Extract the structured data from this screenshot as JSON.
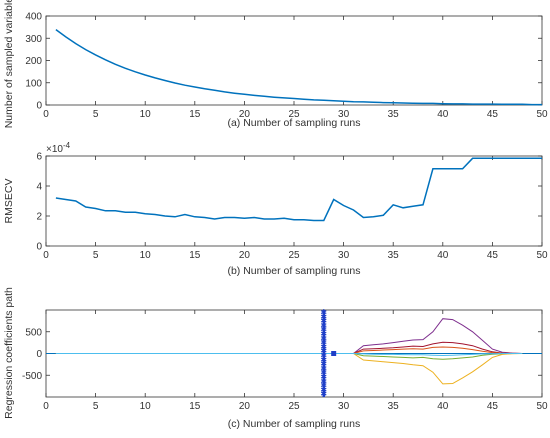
{
  "colors": {
    "curve": "#0072BD",
    "axis": "#333333",
    "marker": "#1F3FC8",
    "paths": [
      "#7E2F8E",
      "#A2142F",
      "#D95319",
      "#77AC30",
      "#EDB120",
      "#4DBEEE"
    ]
  },
  "chart_data": [
    {
      "type": "line",
      "caption": "(a) Number of sampling runs",
      "xlabel": "",
      "ylabel": "Number of sampled variables",
      "xlim": [
        0,
        50
      ],
      "ylim": [
        0,
        400
      ],
      "xticks": [
        "0",
        "5",
        "10",
        "15",
        "20",
        "25",
        "30",
        "35",
        "40",
        "45",
        "50"
      ],
      "yticks": [
        "0",
        "100",
        "200",
        "300",
        "400"
      ],
      "x": [
        1,
        2,
        3,
        4,
        5,
        6,
        7,
        8,
        9,
        10,
        11,
        12,
        13,
        14,
        15,
        16,
        17,
        18,
        19,
        20,
        21,
        22,
        23,
        24,
        25,
        26,
        27,
        28,
        29,
        30,
        31,
        32,
        33,
        34,
        35,
        36,
        37,
        38,
        39,
        40,
        41,
        42,
        43,
        44,
        45,
        46,
        47,
        48,
        49,
        50
      ],
      "y": [
        339,
        306,
        276,
        249,
        225,
        203,
        183,
        165,
        149,
        135,
        122,
        110,
        99,
        89,
        81,
        73,
        66,
        59,
        53,
        48,
        43,
        39,
        35,
        32,
        29,
        26,
        23,
        21,
        19,
        17,
        15,
        14,
        12,
        11,
        10,
        9,
        8,
        7,
        7,
        6,
        5,
        5,
        4,
        4,
        4,
        3,
        3,
        3,
        2,
        2
      ]
    },
    {
      "type": "line",
      "caption": "(b) Number of sampling runs",
      "xlabel": "",
      "ylabel": "RMSECV",
      "exponent": "×10",
      "exponent_power": "-4",
      "xlim": [
        0,
        50
      ],
      "ylim": [
        0,
        6
      ],
      "xticks": [
        "0",
        "5",
        "10",
        "15",
        "20",
        "25",
        "30",
        "35",
        "40",
        "45",
        "50"
      ],
      "yticks": [
        "0",
        "2",
        "4",
        "6"
      ],
      "x": [
        1,
        2,
        3,
        4,
        5,
        6,
        7,
        8,
        9,
        10,
        11,
        12,
        13,
        14,
        15,
        16,
        17,
        18,
        19,
        20,
        21,
        22,
        23,
        24,
        25,
        26,
        27,
        28,
        29,
        30,
        31,
        32,
        33,
        34,
        35,
        36,
        37,
        38,
        39,
        40,
        41,
        42,
        43,
        44,
        45,
        46,
        47,
        48,
        49,
        50
      ],
      "y": [
        3.2,
        3.1,
        3.0,
        2.6,
        2.5,
        2.35,
        2.35,
        2.25,
        2.25,
        2.15,
        2.1,
        2.0,
        1.95,
        2.1,
        1.95,
        1.9,
        1.8,
        1.9,
        1.9,
        1.85,
        1.9,
        1.8,
        1.8,
        1.85,
        1.75,
        1.75,
        1.7,
        1.7,
        3.1,
        2.7,
        2.4,
        1.9,
        1.95,
        2.05,
        2.75,
        2.55,
        2.65,
        2.75,
        5.15,
        5.15,
        5.15,
        5.15,
        5.85,
        5.85,
        5.85,
        5.85,
        5.85,
        5.85,
        5.85,
        5.85
      ]
    },
    {
      "type": "line",
      "caption": "(c) Number of sampling runs",
      "xlabel": "",
      "ylabel": "Regression coefficients path",
      "xlim": [
        0,
        50
      ],
      "ylim": [
        -1000,
        1000
      ],
      "xticks": [
        "0",
        "5",
        "10",
        "15",
        "20",
        "25",
        "30",
        "35",
        "40",
        "45",
        "50"
      ],
      "yticks": [
        "-500",
        "0",
        "500"
      ],
      "vertical_marker_x": 28,
      "point_marker": [
        29,
        0
      ],
      "x": [
        1,
        5,
        10,
        15,
        20,
        25,
        28,
        29,
        30,
        31,
        32,
        33,
        34,
        35,
        36,
        37,
        38,
        39,
        40,
        41,
        42,
        43,
        44,
        45,
        46,
        47,
        48
      ],
      "series": [
        {
          "values": [
            0,
            0,
            0,
            0,
            0,
            0,
            0,
            0,
            0,
            0,
            180,
            200,
            220,
            250,
            280,
            310,
            320,
            500,
            800,
            780,
            650,
            500,
            300,
            100,
            30,
            10,
            0
          ]
        },
        {
          "values": [
            0,
            0,
            0,
            0,
            0,
            0,
            0,
            0,
            0,
            0,
            100,
            110,
            120,
            130,
            150,
            170,
            160,
            220,
            260,
            250,
            220,
            180,
            100,
            40,
            10,
            5,
            0
          ]
        },
        {
          "values": [
            0,
            0,
            0,
            0,
            0,
            0,
            0,
            0,
            0,
            0,
            60,
            70,
            80,
            90,
            100,
            110,
            100,
            140,
            150,
            140,
            120,
            90,
            50,
            20,
            5,
            0,
            0
          ]
        },
        {
          "values": [
            0,
            0,
            0,
            0,
            0,
            0,
            0,
            0,
            0,
            0,
            -50,
            -60,
            -70,
            -80,
            -90,
            -100,
            -90,
            -120,
            -130,
            -120,
            -100,
            -80,
            -40,
            -15,
            -5,
            0,
            0
          ]
        },
        {
          "values": [
            0,
            0,
            0,
            0,
            0,
            0,
            0,
            0,
            0,
            0,
            -150,
            -170,
            -190,
            -210,
            -230,
            -260,
            -280,
            -430,
            -700,
            -690,
            -560,
            -420,
            -260,
            -90,
            -20,
            -5,
            0
          ]
        },
        {
          "values": [
            0,
            0,
            0,
            0,
            0,
            0,
            0,
            0,
            0,
            0,
            -10,
            -15,
            -20,
            -20,
            -25,
            -30,
            -30,
            -40,
            -45,
            -40,
            -30,
            -20,
            -10,
            -5,
            0,
            0,
            0
          ]
        }
      ]
    }
  ]
}
